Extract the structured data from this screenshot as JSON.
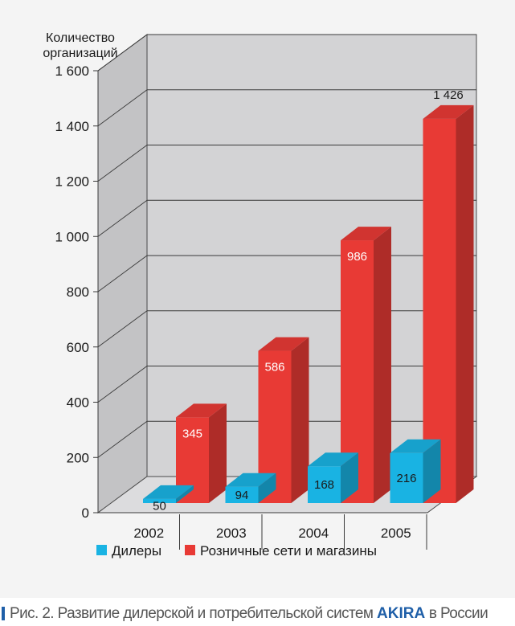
{
  "chart_data": {
    "type": "bar",
    "style": "3d-clustered",
    "ylabel": "Количество организаций",
    "ylim": [
      0,
      1600
    ],
    "yticks": [
      0,
      200,
      400,
      600,
      800,
      1000,
      1200,
      1400,
      1600
    ],
    "ytick_labels": [
      "0",
      "200",
      "400",
      "600",
      "800",
      "1 000",
      "1 200",
      "1 400",
      "1 600"
    ],
    "categories": [
      "2002",
      "2003",
      "2004",
      "2005"
    ],
    "series": [
      {
        "name": "Дилеры",
        "color": "#19b3e3",
        "values": [
          50,
          94,
          168,
          216
        ],
        "labels": [
          "50",
          "94",
          "168",
          "216"
        ]
      },
      {
        "name": "Розничные сети и магазины",
        "color": "#e83a35",
        "values": [
          345,
          586,
          986,
          1426
        ],
        "labels": [
          "345",
          "586",
          "986",
          "1 426"
        ]
      }
    ],
    "legend_position": "bottom-left"
  },
  "caption": {
    "prefix": "Рис. 2. Развитие дилерской и потребительской систем",
    "brand": "AKIRA",
    "suffix": "в России"
  }
}
